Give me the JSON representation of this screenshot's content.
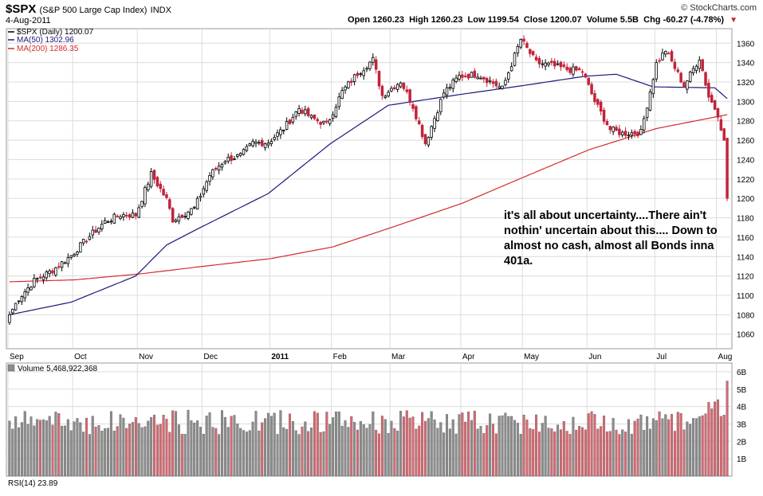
{
  "header": {
    "symbol": "$SPX",
    "name": "(S&P 500 Large Cap Index)",
    "exchange": "INDX",
    "date": "4-Aug-2011",
    "source": "© StockCharts.com",
    "open_label": "Open",
    "open": "1260.23",
    "high_label": "High",
    "high": "1260.23",
    "low_label": "Low",
    "low": "1199.54",
    "close_label": "Close",
    "close": "1200.07",
    "volume_label": "Volume",
    "volume": "5.5B",
    "chg_label": "Chg",
    "chg": "-60.27 (-4.78%)"
  },
  "legend": {
    "price": "$SPX (Daily) 1200.07",
    "ma50": "MA(50) 1302.96",
    "ma200": "MA(200) 1286.35"
  },
  "volume_panel": {
    "label": "Volume 5,468,922,368"
  },
  "rsi_panel": {
    "label": "RSI(14) 23.89"
  },
  "annotation": "it's all about uncertainty....There ain't nothin' uncertain about this....  Down to almost no cash, almost all Bonds inna 401a.",
  "colors": {
    "up": "#000000",
    "down": "#c0243a",
    "ma50": "#1a1a7a",
    "ma200": "#d42b2b",
    "vol_up": "#8c8c8c",
    "vol_down": "#d96770",
    "grid": "#dcdcdc"
  },
  "chart_data": [
    {
      "type": "candlestick",
      "title": "$SPX (S&P 500 Large Cap Index) INDX",
      "x_ticks": [
        "Sep",
        "Oct",
        "Nov",
        "Dec",
        "2011",
        "Feb",
        "Mar",
        "Apr",
        "May",
        "Jun",
        "Jul",
        "Aug"
      ],
      "y_ticks": [
        1060,
        1080,
        1100,
        1120,
        1140,
        1160,
        1180,
        1200,
        1220,
        1240,
        1260,
        1280,
        1300,
        1320,
        1340,
        1360
      ],
      "ylim": [
        1045,
        1375
      ],
      "close_anchors": {
        "2010-09-01": 1080,
        "2010-09-07": 1097,
        "2010-09-14": 1115,
        "2010-09-22": 1126,
        "2010-09-30": 1141,
        "2010-10-07": 1158,
        "2010-10-15": 1176,
        "2010-10-22": 1183,
        "2010-10-29": 1183,
        "2010-11-05": 1225,
        "2010-11-12": 1199,
        "2010-11-16": 1178,
        "2010-11-26": 1190,
        "2010-12-03": 1224,
        "2010-12-10": 1240,
        "2010-12-17": 1244,
        "2010-12-23": 1257,
        "2010-12-31": 1258,
        "2011-01-07": 1272,
        "2011-01-14": 1293,
        "2011-01-21": 1283,
        "2011-01-28": 1276,
        "2011-02-04": 1310,
        "2011-02-11": 1329,
        "2011-02-18": 1343,
        "2011-02-24": 1306,
        "2011-03-04": 1321,
        "2011-03-10": 1295,
        "2011-03-16": 1257,
        "2011-03-24": 1309,
        "2011-03-31": 1326,
        "2011-04-08": 1328,
        "2011-04-15": 1319,
        "2011-04-20": 1313,
        "2011-04-29": 1364,
        "2011-05-06": 1340,
        "2011-05-13": 1337,
        "2011-05-20": 1333,
        "2011-05-27": 1331,
        "2011-06-03": 1300,
        "2011-06-10": 1271,
        "2011-06-16": 1267,
        "2011-06-24": 1268,
        "2011-07-01": 1339,
        "2011-07-07": 1353,
        "2011-07-15": 1316,
        "2011-07-22": 1345,
        "2011-07-27": 1305,
        "2011-08-01": 1287,
        "2011-08-03": 1260,
        "2011-08-04": 1200
      },
      "ma50_anchors": {
        "2010-09-01": 1080,
        "2010-09-30": 1093,
        "2010-10-29": 1120,
        "2010-11-12": 1152,
        "2010-11-30": 1170,
        "2010-12-31": 1205,
        "2011-01-31": 1256,
        "2011-02-28": 1296,
        "2011-03-31": 1307,
        "2011-04-29": 1316,
        "2011-05-31": 1326,
        "2011-06-14": 1328,
        "2011-06-30": 1315,
        "2011-07-29": 1314,
        "2011-08-04": 1302.96
      },
      "ma200_anchors": {
        "2010-09-01": 1114,
        "2010-10-01": 1116,
        "2010-11-01": 1122,
        "2010-12-01": 1130,
        "2011-01-03": 1138,
        "2011-02-01": 1150,
        "2011-03-01": 1170,
        "2011-04-01": 1195,
        "2011-05-02": 1222,
        "2011-06-01": 1250,
        "2011-07-01": 1272,
        "2011-08-04": 1286.35
      },
      "last_close": 1200.07
    },
    {
      "type": "bar",
      "title": "Volume 5,468,922,368",
      "y_ticks": [
        "1B",
        "2B",
        "3B",
        "4B",
        "5B",
        "6B"
      ],
      "ylim": [
        0,
        6.5
      ],
      "unit": "billion shares",
      "last_value": 5.47
    }
  ]
}
